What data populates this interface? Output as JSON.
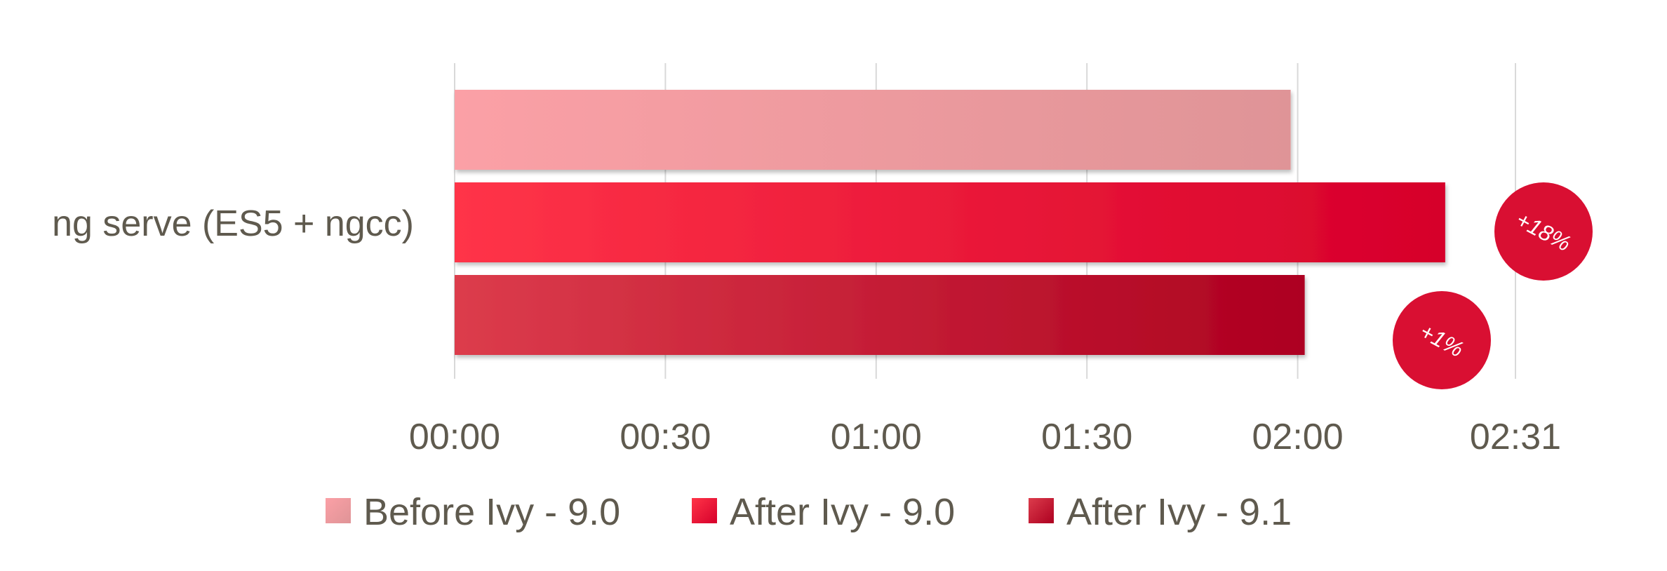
{
  "chart_data": {
    "type": "bar",
    "orientation": "horizontal",
    "categories": [
      "ng serve (ES5 + ngcc)"
    ],
    "x_unit": "mm:ss",
    "xlim": [
      "00:00",
      "02:31"
    ],
    "x_ticks": [
      "00:00",
      "00:30",
      "01:00",
      "01:30",
      "02:00",
      "02:31"
    ],
    "grid": true,
    "legend_position": "bottom",
    "series": [
      {
        "name": "Before Ivy - 9.0",
        "values": [
          "01:59"
        ],
        "color_start": "#fba0a6",
        "color_end": "#df9497"
      },
      {
        "name": "After Ivy - 9.0",
        "values": [
          "02:21"
        ],
        "color_start": "#ff3448",
        "color_end": "#d6002b",
        "annotation": "+18%"
      },
      {
        "name": "After Ivy - 9.1",
        "values": [
          "02:01"
        ],
        "color_start": "#dc3c4c",
        "color_end": "#ad0020",
        "annotation": "+1%"
      }
    ],
    "badge_color": "#d90f32"
  }
}
